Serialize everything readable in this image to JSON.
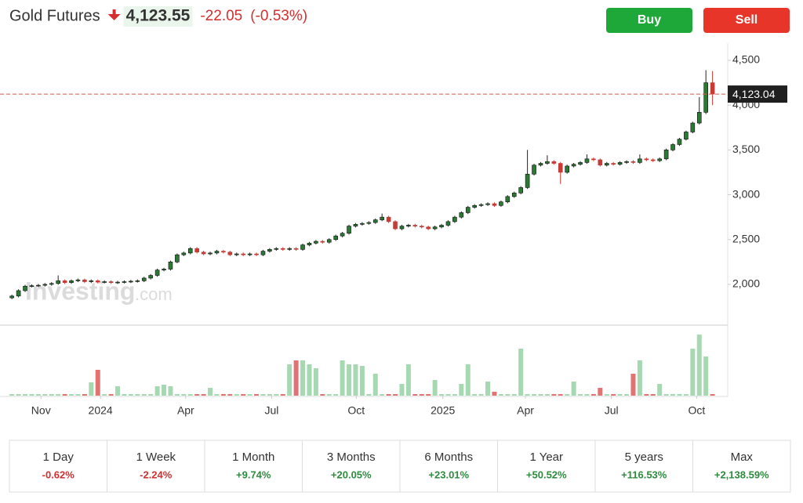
{
  "header": {
    "title": "Gold Futures",
    "price": "4,123.55",
    "change": "-22.05",
    "change_percent": "(-0.53%)"
  },
  "buttons": [
    "Buy",
    "Sell"
  ],
  "watermark": [
    "Investing",
    ".com"
  ],
  "chart_data": {
    "type": "candlestick",
    "up_color": "#2a7a34",
    "down_color": "#c63b36",
    "volume_up_color": "#a6d8b2",
    "volume_down_color": "#e37373",
    "ylim": [
      1545,
      4692
    ],
    "yticks": [
      {
        "value": 2000,
        "label": "2,000"
      },
      {
        "value": 2500,
        "label": "2,500"
      },
      {
        "value": 3000,
        "label": "3,000"
      },
      {
        "value": 3500,
        "label": "3,500"
      },
      {
        "value": 4000,
        "label": "4,000"
      },
      {
        "value": 4500,
        "label": "4,500"
      }
    ],
    "xlim": [
      -1.8,
      108.3
    ],
    "xticks": [
      {
        "value": 4.4,
        "label": "Nov"
      },
      {
        "value": 13.4,
        "label": "2024"
      },
      {
        "value": 26.3,
        "label": "Apr"
      },
      {
        "value": 39.3,
        "label": "Jul"
      },
      {
        "value": 52.1,
        "label": "Oct"
      },
      {
        "value": 65.2,
        "label": "2025"
      },
      {
        "value": 77.7,
        "label": "Apr"
      },
      {
        "value": 90.7,
        "label": "Jul"
      },
      {
        "value": 103.6,
        "label": "Oct"
      }
    ],
    "last_price": {
      "value": 4123.04,
      "label": "4,123.04"
    },
    "open": [
      1850,
      1870,
      1930,
      1980,
      1985,
      1990,
      2000,
      2010,
      2040,
      2020,
      2040,
      2050,
      2030,
      2040,
      2025,
      2030,
      2020,
      2025,
      2030,
      2035,
      2040,
      2070,
      2100,
      2160,
      2170,
      2250,
      2330,
      2350,
      2400,
      2360,
      2340,
      2350,
      2370,
      2360,
      2330,
      2340,
      2330,
      2340,
      2330,
      2370,
      2390,
      2400,
      2390,
      2400,
      2390,
      2440,
      2460,
      2480,
      2470,
      2500,
      2540,
      2570,
      2650,
      2670,
      2680,
      2690,
      2720,
      2750,
      2700,
      2620,
      2650,
      2660,
      2650,
      2640,
      2620,
      2640,
      2660,
      2700,
      2750,
      2800,
      2860,
      2880,
      2890,
      2900,
      2880,
      2920,
      2980,
      3020,
      3080,
      3230,
      3330,
      3350,
      3370,
      3350,
      3250,
      3320,
      3340,
      3360,
      3400,
      3390,
      3330,
      3350,
      3340,
      3360,
      3370,
      3360,
      3400,
      3390,
      3380,
      3400,
      3500,
      3560,
      3620,
      3700,
      3800,
      3920,
      4250
    ],
    "high": [
      1885,
      1945,
      1995,
      2000,
      2005,
      2015,
      2025,
      2100,
      2055,
      2055,
      2065,
      2065,
      2055,
      2055,
      2045,
      2045,
      2040,
      2045,
      2050,
      2055,
      2085,
      2115,
      2175,
      2185,
      2265,
      2345,
      2365,
      2415,
      2415,
      2375,
      2365,
      2385,
      2385,
      2375,
      2355,
      2355,
      2355,
      2355,
      2385,
      2405,
      2415,
      2415,
      2415,
      2415,
      2455,
      2475,
      2495,
      2495,
      2515,
      2555,
      2585,
      2665,
      2685,
      2695,
      2705,
      2735,
      2790,
      2765,
      2715,
      2665,
      2675,
      2675,
      2665,
      2655,
      2655,
      2675,
      2715,
      2765,
      2815,
      2875,
      2895,
      2905,
      2915,
      2915,
      2935,
      2995,
      3035,
      3095,
      3500,
      3345,
      3365,
      3440,
      3385,
      3365,
      3335,
      3355,
      3375,
      3450,
      3415,
      3405,
      3365,
      3365,
      3375,
      3385,
      3385,
      3450,
      3415,
      3405,
      3415,
      3515,
      3575,
      3635,
      3715,
      3815,
      4090,
      4390,
      4380
    ],
    "low": [
      1835,
      1855,
      1915,
      1965,
      1970,
      1975,
      1985,
      1995,
      2005,
      2005,
      2025,
      2015,
      2015,
      2010,
      2010,
      2005,
      2005,
      2010,
      2015,
      2020,
      2025,
      2055,
      2085,
      2145,
      2155,
      2235,
      2315,
      2335,
      2345,
      2325,
      2325,
      2335,
      2345,
      2315,
      2315,
      2315,
      2315,
      2315,
      2315,
      2355,
      2375,
      2375,
      2375,
      2375,
      2375,
      2425,
      2445,
      2455,
      2455,
      2485,
      2525,
      2555,
      2635,
      2655,
      2665,
      2675,
      2705,
      2685,
      2605,
      2605,
      2635,
      2635,
      2625,
      2605,
      2605,
      2625,
      2645,
      2685,
      2735,
      2785,
      2845,
      2865,
      2875,
      2865,
      2865,
      2905,
      2965,
      3005,
      3065,
      3215,
      3315,
      3335,
      3335,
      3120,
      3235,
      3305,
      3325,
      3345,
      3375,
      3315,
      3315,
      3325,
      3325,
      3345,
      3345,
      3345,
      3375,
      3365,
      3365,
      3385,
      3485,
      3545,
      3605,
      3685,
      3785,
      3900,
      4000
    ],
    "close": [
      1870,
      1930,
      1980,
      1985,
      1990,
      2000,
      2010,
      2040,
      2020,
      2040,
      2050,
      2030,
      2040,
      2025,
      2030,
      2020,
      2025,
      2030,
      2035,
      2040,
      2070,
      2100,
      2160,
      2170,
      2250,
      2330,
      2350,
      2400,
      2360,
      2340,
      2350,
      2370,
      2360,
      2330,
      2340,
      2330,
      2340,
      2330,
      2370,
      2390,
      2400,
      2390,
      2400,
      2390,
      2440,
      2460,
      2480,
      2470,
      2500,
      2540,
      2570,
      2650,
      2670,
      2680,
      2690,
      2720,
      2750,
      2700,
      2620,
      2650,
      2660,
      2650,
      2640,
      2620,
      2640,
      2660,
      2700,
      2750,
      2800,
      2860,
      2880,
      2890,
      2900,
      2880,
      2920,
      2980,
      3020,
      3080,
      3230,
      3330,
      3350,
      3370,
      3350,
      3250,
      3320,
      3340,
      3360,
      3400,
      3390,
      3330,
      3350,
      3340,
      3360,
      3370,
      3360,
      3400,
      3390,
      3380,
      3400,
      3500,
      3560,
      3620,
      3700,
      3800,
      3920,
      4250,
      4123
    ],
    "volume_ylim": [
      0,
      80
    ],
    "volume": [
      2,
      2,
      2,
      2,
      2,
      2,
      2,
      2,
      2,
      2,
      2,
      2,
      17,
      33,
      2,
      2,
      12,
      2,
      2,
      2,
      2,
      2,
      12,
      14,
      12,
      2,
      2,
      2,
      2,
      2,
      10,
      2,
      2,
      2,
      2,
      2,
      2,
      2,
      2,
      2,
      2,
      2,
      40,
      45,
      45,
      40,
      35,
      2,
      2,
      2,
      45,
      40,
      40,
      38,
      2,
      28,
      2,
      2,
      2,
      15,
      40,
      2,
      2,
      2,
      20,
      2,
      2,
      2,
      15,
      40,
      2,
      2,
      18,
      5,
      2,
      2,
      2,
      60,
      2,
      2,
      2,
      2,
      2,
      2,
      2,
      18,
      2,
      2,
      2,
      10,
      2,
      2,
      2,
      2,
      28,
      45,
      2,
      2,
      15,
      2,
      2,
      2,
      2,
      60,
      78,
      50,
      2
    ]
  },
  "periods": [
    {
      "label": "1 Day",
      "value": "-0.62%"
    },
    {
      "label": "1 Week",
      "value": "-2.24%"
    },
    {
      "label": "1 Month",
      "value": "+9.74%"
    },
    {
      "label": "3 Months",
      "value": "+20.05%"
    },
    {
      "label": "6 Months",
      "value": "+23.01%"
    },
    {
      "label": "1 Year",
      "value": "+50.52%"
    },
    {
      "label": "5 years",
      "value": "+116.53%"
    },
    {
      "label": "Max",
      "value": "+2,138.59%"
    }
  ]
}
